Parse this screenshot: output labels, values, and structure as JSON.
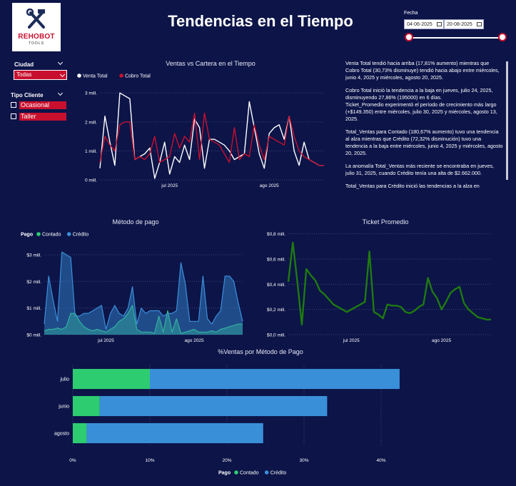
{
  "header": {
    "title": "Tendencias en el Tiempo",
    "logo_text": "REHOBOT",
    "logo_sub": "TOOLS"
  },
  "date_filter": {
    "label": "Fecha",
    "start": "04-06-2025",
    "end": "20-08-2025"
  },
  "filters": {
    "city_label": "Ciudad",
    "city_value": "Todas",
    "client_label": "Tipo Cliente",
    "client_options": [
      "Ocasional",
      "Taller"
    ]
  },
  "colors": {
    "background": "#0c1448",
    "venta_total": "#ffffff",
    "cobro_total": "#c8102e",
    "contado": "#2ecc71",
    "credito": "#3a8fd9",
    "ticket": "#1f7a0f"
  },
  "narrative": [
    "Venta Total tendió hacia arriba (17,81% aumento) mientras que Cobro Total (30,73% disminuye) tendió hacia abajo entre miércoles, junio 4, 2025 y miércoles, agosto 20, 2025.",
    "Cobro Total inició la tendencia a la baja en jueves, julio 24, 2025, disminuyendo 27,86% (195000) en 6 días.",
    "Ticket_Promedio experimentó el período de crecimiento más largo (+$149.350) entre miércoles, julio 30, 2025 y miércoles, agosto 13, 2025.",
    "Total_Ventas para Contado (180,67% aumento) tuvo una tendencia al alza mientras que Crédito (72,32% disminución) tuvo una tendencia a la baja entre miércoles, junio 4, 2025 y miércoles, agosto 20, 2025.",
    "La anomalía Total_Ventas más reciente se encontraba en jueves, julio 31, 2025, cuando Crédito tenía una alta de $2.662.000.",
    "Total_Ventas para Crédito inició las tendencias a la alza en"
  ],
  "chart_data": [
    {
      "id": "ventas-cartera",
      "type": "line",
      "title": "Ventas vs Cartera en el Tiempo",
      "x": [
        0,
        1,
        2,
        3,
        4,
        5,
        6,
        7,
        8,
        9,
        10,
        11,
        12,
        13,
        14,
        15,
        16,
        17,
        18,
        19,
        20,
        21,
        22,
        23,
        24,
        25,
        26,
        27,
        28,
        29,
        30,
        31,
        32,
        33,
        34,
        35,
        36,
        37,
        38,
        39,
        40,
        41,
        42,
        43,
        44,
        45
      ],
      "x_ticks": [
        {
          "x": 14,
          "label": "jul 2025"
        },
        {
          "x": 34,
          "label": "ago 2025"
        }
      ],
      "y_ticks": [
        {
          "v": 0,
          "label": "0 mill."
        },
        {
          "v": 1,
          "label": "1 mill."
        },
        {
          "v": 2,
          "label": "2 mill."
        },
        {
          "v": 3,
          "label": "3 mill."
        }
      ],
      "ylim": [
        0,
        3.4
      ],
      "legend": "top-left",
      "series": [
        {
          "name": "Venta Total",
          "color": "#ffffff",
          "values": [
            0.4,
            2.2,
            1.3,
            0.5,
            3.0,
            2.9,
            2.8,
            0.7,
            0.8,
            0.9,
            1.1,
            0.05,
            0.6,
            1.3,
            0.2,
            0.8,
            0.6,
            1.2,
            0.7,
            2.1,
            1.8,
            0.4,
            1.4,
            1.4,
            1.3,
            1.2,
            1.0,
            0.7,
            0.8,
            0.9,
            2.7,
            1.8,
            0.9,
            0.4,
            1.6,
            1.8,
            1.9,
            1.4,
            2.2,
            1.0,
            0.5,
            1.3,
            0.7,
            0.6,
            0.5,
            0.5
          ]
        },
        {
          "name": "Cobro Total",
          "color": "#c8102e",
          "values": [
            0.6,
            1.5,
            1.2,
            1.0,
            1.9,
            2.0,
            2.0,
            0.7,
            0.8,
            0.7,
            0.9,
            1.5,
            0.6,
            0.7,
            0.8,
            1.6,
            1.1,
            1.5,
            1.3,
            2.3,
            0.7,
            2.3,
            1.4,
            1.3,
            1.2,
            0.9,
            0.6,
            1.8,
            0.7,
            0.9,
            0.8,
            1.9,
            1.2,
            0.7,
            1.5,
            1.4,
            1.3,
            1.2,
            2.2,
            1.5,
            1.0,
            0.8,
            0.7,
            0.6,
            0.5,
            0.5
          ]
        }
      ]
    },
    {
      "id": "metodo-pago",
      "type": "area",
      "title": "Método de pago",
      "legend_title": "Pago",
      "legend": "top-left",
      "x": [
        0,
        1,
        2,
        3,
        4,
        5,
        6,
        7,
        8,
        9,
        10,
        11,
        12,
        13,
        14,
        15,
        16,
        17,
        18,
        19,
        20,
        21,
        22,
        23,
        24,
        25,
        26,
        27,
        28,
        29,
        30,
        31,
        32,
        33,
        34,
        35,
        36,
        37,
        38,
        39,
        40,
        41,
        42,
        43,
        44,
        45
      ],
      "x_ticks": [
        {
          "x": 14,
          "label": "jul 2025"
        },
        {
          "x": 34,
          "label": "ago 2025"
        }
      ],
      "y_ticks": [
        {
          "v": 0,
          "label": "$0 mill."
        },
        {
          "v": 1,
          "label": "$1 mill."
        },
        {
          "v": 2,
          "label": "$2 mill."
        },
        {
          "v": 3,
          "label": "$3 mill."
        }
      ],
      "ylim": [
        0,
        3.4
      ],
      "series": [
        {
          "name": "Contado",
          "color": "#2ecc71",
          "values": [
            0.15,
            0.2,
            0.2,
            0.25,
            0.2,
            0.3,
            0.8,
            0.8,
            0.5,
            0.3,
            0.2,
            0.15,
            0.2,
            0.15,
            0.1,
            0.2,
            0.3,
            0.5,
            0.6,
            0.8,
            1.1,
            0.2,
            0.1,
            0.1,
            0.1,
            0.05,
            0.7,
            0.1,
            0.9,
            0.1,
            0.6,
            0.05,
            0.1,
            0.15,
            0.2,
            0.1,
            0.1,
            0.1,
            0.15,
            0.1,
            0.2,
            0.25,
            0.3,
            0.35,
            0.4,
            0.4
          ]
        },
        {
          "name": "Crédito",
          "color": "#3a8fd9",
          "values": [
            0.4,
            2.2,
            1.3,
            0.5,
            3.1,
            3.0,
            2.9,
            0.7,
            0.7,
            0.8,
            0.8,
            0.9,
            1.0,
            1.1,
            0.2,
            0.8,
            1.1,
            0.8,
            0.7,
            1.0,
            1.8,
            0.4,
            1.0,
            0.8,
            0.9,
            0.9,
            0.9,
            0.7,
            0.8,
            0.8,
            0.9,
            2.7,
            1.9,
            0.5,
            0.5,
            0.5,
            2.2,
            0.6,
            0.4,
            0.7,
            0.9,
            2.2,
            2.2,
            2.0,
            1.2,
            0.5
          ]
        }
      ]
    },
    {
      "id": "ticket-promedio",
      "type": "line",
      "title": "Ticket Promedio",
      "x": [
        0,
        1,
        2,
        3,
        4,
        5,
        6,
        7,
        8,
        9,
        10,
        11,
        12,
        13,
        14,
        15,
        16,
        17,
        18,
        19,
        20,
        21,
        22,
        23,
        24,
        25,
        26,
        27,
        28,
        29,
        30,
        31,
        32,
        33,
        34,
        35,
        36,
        37,
        38,
        39,
        40,
        41,
        42,
        43,
        44,
        45
      ],
      "x_ticks": [
        {
          "x": 14,
          "label": "jul 2025"
        },
        {
          "x": 34,
          "label": "ago 2025"
        }
      ],
      "y_ticks": [
        {
          "v": 0,
          "label": "$0,0 mill."
        },
        {
          "v": 0.2,
          "label": "$0,2 mill."
        },
        {
          "v": 0.4,
          "label": "$0,4 mill."
        },
        {
          "v": 0.6,
          "label": "$0,6 mill."
        },
        {
          "v": 0.8,
          "label": "$0,8 mill."
        }
      ],
      "ylim": [
        0,
        0.82
      ],
      "series": [
        {
          "name": "",
          "color": "#1f7a0f",
          "values": [
            0.42,
            0.73,
            0.42,
            0.08,
            0.52,
            0.47,
            0.43,
            0.35,
            0.32,
            0.28,
            0.24,
            0.22,
            0.2,
            0.18,
            0.2,
            0.22,
            0.24,
            0.26,
            0.66,
            0.18,
            0.16,
            0.13,
            0.24,
            0.23,
            0.23,
            0.22,
            0.18,
            0.17,
            0.19,
            0.22,
            0.24,
            0.45,
            0.34,
            0.29,
            0.2,
            0.26,
            0.33,
            0.36,
            0.38,
            0.25,
            0.2,
            0.17,
            0.14,
            0.13,
            0.12,
            0.12
          ]
        }
      ]
    },
    {
      "id": "pct-ventas-metodo",
      "type": "bar",
      "orientation": "horizontal",
      "stacked": true,
      "title": "%Ventas por Método de Pago",
      "legend_title": "Pago",
      "legend": "bottom",
      "categories": [
        "julio",
        "junio",
        "agosto"
      ],
      "x_ticks": [
        {
          "v": 0,
          "label": "0%"
        },
        {
          "v": 10,
          "label": "10%"
        },
        {
          "v": 20,
          "label": "20%"
        },
        {
          "v": 30,
          "label": "30%"
        },
        {
          "v": 40,
          "label": "40%"
        }
      ],
      "xlim": [
        0,
        45
      ],
      "series": [
        {
          "name": "Contado",
          "color": "#2ecc71",
          "values": [
            10.0,
            3.5,
            1.8
          ]
        },
        {
          "name": "Crédito",
          "color": "#3a8fd9",
          "values": [
            32.4,
            29.5,
            22.9
          ]
        }
      ]
    }
  ]
}
